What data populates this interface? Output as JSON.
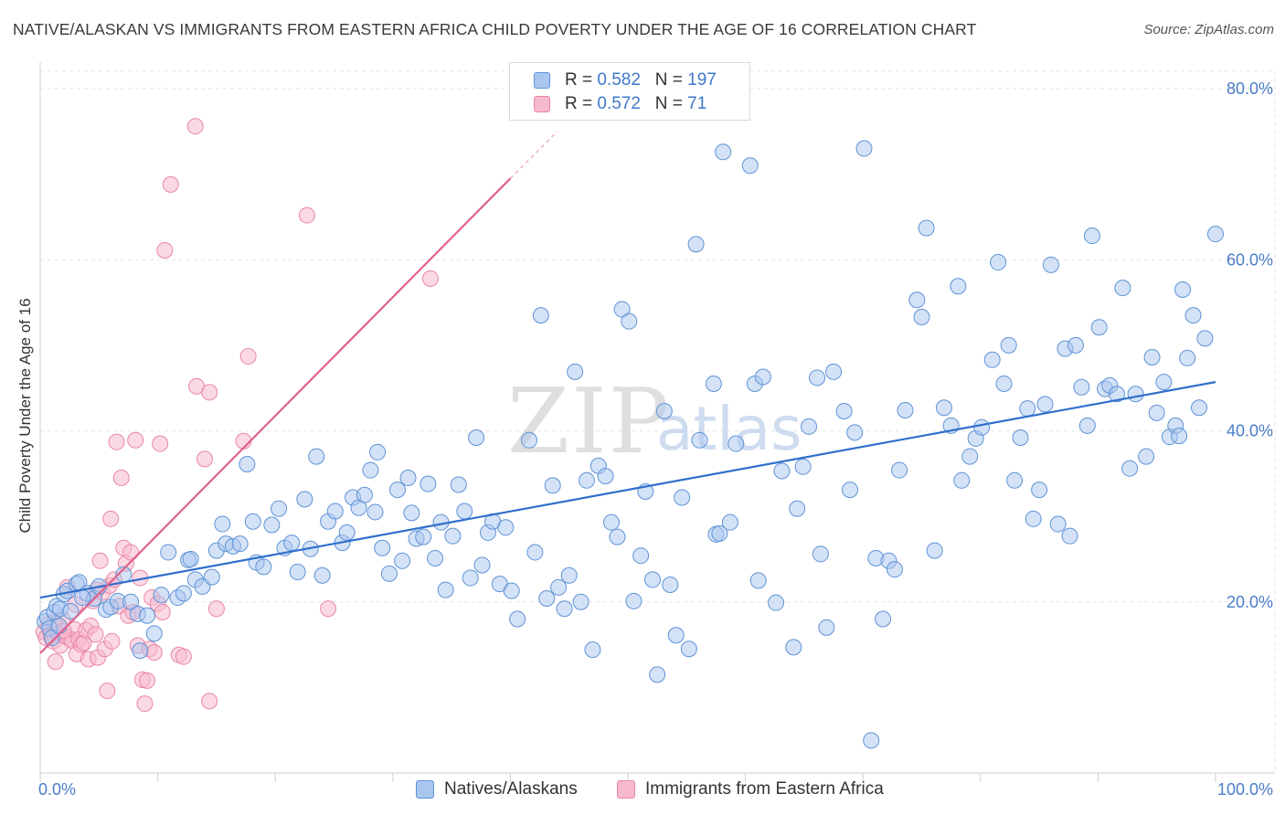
{
  "header": {
    "title": "NATIVE/ALASKAN VS IMMIGRANTS FROM EASTERN AFRICA CHILD POVERTY UNDER THE AGE OF 16 CORRELATION CHART",
    "source": "Source: ZipAtlas.com"
  },
  "watermark": {
    "zip": "ZIP",
    "atlas": "atlas"
  },
  "legend": {
    "rows": [
      {
        "r_label": "R = ",
        "r_value": "0.582",
        "n_label": "N = ",
        "n_value": "197"
      },
      {
        "r_label": "R = ",
        "r_value": "0.572",
        "n_label": "N = ",
        "n_value": "71"
      }
    ]
  },
  "colors": {
    "blue_fill": "#a9c6ef",
    "blue_stroke": "#5f93d6",
    "blue_line": "#2f6fcb",
    "pink_fill": "#f7b9cc",
    "pink_stroke": "#e886a6",
    "pink_line": "#e0628d",
    "grid": "#e6e6e6",
    "tick_text": "#4a7cc9"
  },
  "chart_data": {
    "type": "scatter",
    "title": "NATIVE/ALASKAN VS IMMIGRANTS FROM EASTERN AFRICA CHILD POVERTY UNDER THE AGE OF 16 CORRELATION CHART",
    "xlabel": "",
    "ylabel": "Child Poverty Under the Age of 16",
    "xlim": [
      0,
      100
    ],
    "ylim": [
      0,
      80
    ],
    "x_tick_labels": [
      "0.0%",
      "100.0%"
    ],
    "y_ticks": [
      20,
      40,
      60,
      80
    ],
    "y_tick_labels": [
      "20.0%",
      "40.0%",
      "60.0%",
      "80.0%"
    ],
    "grid": true,
    "legend_position": "top-center",
    "series": [
      {
        "name": "Natives/Alaskans",
        "color": "#a9c6ef",
        "trend": {
          "x": [
            0,
            100
          ],
          "y": [
            20.5,
            45.7
          ]
        },
        "points": [
          [
            0.4,
            17.7
          ],
          [
            0.6,
            18.2
          ],
          [
            0.8,
            16.9
          ],
          [
            1.0,
            15.8
          ],
          [
            1.2,
            18.8
          ],
          [
            1.4,
            19.5
          ],
          [
            1.7,
            19.2
          ],
          [
            2.0,
            20.9
          ],
          [
            2.3,
            21.3
          ],
          [
            3.1,
            22.1
          ],
          [
            3.3,
            22.3
          ],
          [
            4.0,
            21.0
          ],
          [
            4.6,
            20.4
          ],
          [
            5.0,
            21.8
          ],
          [
            5.6,
            19.1
          ],
          [
            6.0,
            19.4
          ],
          [
            6.6,
            20.1
          ],
          [
            7.1,
            23.2
          ],
          [
            7.7,
            20.0
          ],
          [
            8.3,
            18.6
          ],
          [
            8.5,
            14.3
          ],
          [
            9.1,
            18.4
          ],
          [
            9.7,
            16.3
          ],
          [
            10.3,
            20.8
          ],
          [
            10.9,
            25.8
          ],
          [
            11.7,
            20.5
          ],
          [
            12.2,
            21.0
          ],
          [
            12.6,
            24.9
          ],
          [
            12.8,
            25.0
          ],
          [
            13.2,
            22.6
          ],
          [
            13.8,
            21.8
          ],
          [
            14.6,
            22.9
          ],
          [
            15.0,
            26.0
          ],
          [
            15.5,
            29.1
          ],
          [
            15.8,
            26.8
          ],
          [
            16.4,
            26.5
          ],
          [
            17.0,
            26.8
          ],
          [
            17.6,
            36.1
          ],
          [
            18.1,
            29.4
          ],
          [
            18.4,
            24.6
          ],
          [
            19.0,
            24.1
          ],
          [
            19.7,
            29.0
          ],
          [
            20.3,
            30.9
          ],
          [
            20.8,
            26.3
          ],
          [
            21.4,
            26.9
          ],
          [
            21.9,
            23.5
          ],
          [
            22.5,
            32.0
          ],
          [
            23.0,
            26.2
          ],
          [
            23.5,
            37.0
          ],
          [
            24.0,
            23.1
          ],
          [
            24.5,
            29.4
          ],
          [
            25.1,
            30.6
          ],
          [
            25.7,
            26.9
          ],
          [
            26.1,
            28.1
          ],
          [
            26.6,
            32.2
          ],
          [
            27.1,
            31.0
          ],
          [
            27.6,
            32.5
          ],
          [
            28.1,
            35.4
          ],
          [
            28.5,
            30.5
          ],
          [
            28.7,
            37.5
          ],
          [
            29.1,
            26.3
          ],
          [
            29.7,
            23.3
          ],
          [
            30.4,
            33.1
          ],
          [
            30.8,
            24.8
          ],
          [
            31.3,
            34.5
          ],
          [
            31.6,
            30.4
          ],
          [
            32.0,
            27.4
          ],
          [
            32.6,
            27.6
          ],
          [
            33.0,
            33.8
          ],
          [
            33.6,
            25.1
          ],
          [
            34.1,
            29.3
          ],
          [
            34.5,
            21.4
          ],
          [
            35.1,
            27.7
          ],
          [
            35.6,
            33.7
          ],
          [
            36.1,
            30.6
          ],
          [
            36.6,
            22.8
          ],
          [
            37.1,
            39.2
          ],
          [
            37.6,
            24.3
          ],
          [
            38.1,
            28.1
          ],
          [
            38.5,
            29.4
          ],
          [
            39.1,
            22.1
          ],
          [
            39.6,
            28.7
          ],
          [
            40.1,
            21.3
          ],
          [
            40.6,
            18.0
          ],
          [
            41.6,
            38.9
          ],
          [
            42.1,
            25.8
          ],
          [
            42.6,
            53.5
          ],
          [
            43.1,
            20.4
          ],
          [
            43.6,
            33.6
          ],
          [
            44.1,
            21.7
          ],
          [
            44.6,
            19.2
          ],
          [
            45.0,
            23.1
          ],
          [
            45.5,
            46.9
          ],
          [
            46.0,
            20.0
          ],
          [
            46.5,
            34.2
          ],
          [
            47.0,
            14.4
          ],
          [
            47.5,
            35.9
          ],
          [
            48.1,
            34.7
          ],
          [
            48.6,
            29.3
          ],
          [
            49.1,
            27.6
          ],
          [
            49.5,
            54.2
          ],
          [
            50.1,
            52.8
          ],
          [
            50.5,
            20.1
          ],
          [
            51.1,
            25.4
          ],
          [
            51.5,
            32.9
          ],
          [
            52.1,
            22.6
          ],
          [
            52.5,
            11.5
          ],
          [
            53.1,
            42.3
          ],
          [
            53.6,
            22.0
          ],
          [
            54.1,
            16.1
          ],
          [
            54.6,
            32.2
          ],
          [
            55.2,
            14.5
          ],
          [
            55.8,
            61.8
          ],
          [
            56.1,
            38.9
          ],
          [
            57.3,
            45.5
          ],
          [
            57.5,
            27.9
          ],
          [
            57.8,
            28.0
          ],
          [
            58.1,
            72.6
          ],
          [
            58.7,
            29.3
          ],
          [
            59.2,
            38.5
          ],
          [
            60.4,
            71.0
          ],
          [
            60.8,
            45.5
          ],
          [
            61.1,
            22.5
          ],
          [
            61.5,
            46.3
          ],
          [
            62.6,
            19.9
          ],
          [
            63.1,
            35.3
          ],
          [
            64.1,
            14.7
          ],
          [
            64.4,
            30.9
          ],
          [
            64.9,
            35.8
          ],
          [
            65.4,
            40.5
          ],
          [
            66.1,
            46.2
          ],
          [
            66.4,
            25.6
          ],
          [
            66.9,
            17.0
          ],
          [
            67.5,
            46.9
          ],
          [
            68.4,
            42.3
          ],
          [
            68.9,
            33.1
          ],
          [
            69.3,
            39.8
          ],
          [
            70.1,
            73.0
          ],
          [
            70.7,
            3.8
          ],
          [
            71.1,
            25.1
          ],
          [
            71.7,
            18.0
          ],
          [
            72.2,
            24.8
          ],
          [
            72.7,
            23.8
          ],
          [
            73.1,
            35.4
          ],
          [
            73.6,
            42.4
          ],
          [
            74.6,
            55.3
          ],
          [
            75.0,
            53.3
          ],
          [
            75.4,
            63.7
          ],
          [
            76.1,
            26.0
          ],
          [
            76.9,
            42.7
          ],
          [
            77.5,
            40.6
          ],
          [
            78.1,
            56.9
          ],
          [
            78.4,
            34.2
          ],
          [
            79.1,
            37.0
          ],
          [
            79.6,
            39.1
          ],
          [
            80.1,
            40.4
          ],
          [
            81.0,
            48.3
          ],
          [
            81.5,
            59.7
          ],
          [
            82.0,
            45.5
          ],
          [
            82.4,
            50.0
          ],
          [
            82.9,
            34.2
          ],
          [
            83.4,
            39.2
          ],
          [
            84.0,
            42.6
          ],
          [
            84.5,
            29.7
          ],
          [
            85.0,
            33.1
          ],
          [
            85.5,
            43.1
          ],
          [
            86.0,
            59.4
          ],
          [
            86.6,
            29.1
          ],
          [
            87.2,
            49.6
          ],
          [
            87.6,
            27.7
          ],
          [
            88.1,
            50.0
          ],
          [
            88.6,
            45.1
          ],
          [
            89.1,
            40.6
          ],
          [
            89.5,
            62.8
          ],
          [
            90.1,
            52.1
          ],
          [
            90.6,
            44.9
          ],
          [
            91.0,
            45.3
          ],
          [
            91.6,
            44.3
          ],
          [
            92.1,
            56.7
          ],
          [
            92.7,
            35.6
          ],
          [
            93.2,
            44.3
          ],
          [
            94.1,
            37.0
          ],
          [
            94.6,
            48.6
          ],
          [
            95.0,
            42.1
          ],
          [
            95.6,
            45.7
          ],
          [
            96.1,
            39.3
          ],
          [
            96.6,
            40.6
          ],
          [
            96.9,
            39.4
          ],
          [
            97.2,
            56.5
          ],
          [
            97.6,
            48.5
          ],
          [
            98.1,
            53.5
          ],
          [
            98.6,
            42.7
          ],
          [
            99.1,
            50.8
          ],
          [
            100.0,
            63.0
          ],
          [
            1.6,
            17.2
          ],
          [
            2.6,
            18.9
          ],
          [
            3.6,
            20.5
          ]
        ]
      },
      {
        "name": "Immigrants from Eastern Africa",
        "color": "#f7b9cc",
        "trend": {
          "x": [
            0,
            40
          ],
          "y": [
            14.0,
            69.5
          ]
        },
        "trend_dashed_ext": {
          "x": [
            40,
            44
          ],
          "y": [
            69.5,
            75.0
          ]
        },
        "points": [
          [
            0.3,
            16.5
          ],
          [
            0.5,
            15.8
          ],
          [
            0.7,
            17.4
          ],
          [
            0.9,
            16.2
          ],
          [
            1.1,
            15.4
          ],
          [
            1.3,
            13.0
          ],
          [
            1.5,
            16.3
          ],
          [
            1.7,
            14.9
          ],
          [
            1.9,
            17.9
          ],
          [
            2.1,
            16.0
          ],
          [
            2.3,
            21.7
          ],
          [
            2.5,
            15.7
          ],
          [
            2.7,
            15.5
          ],
          [
            2.9,
            16.8
          ],
          [
            3.1,
            13.9
          ],
          [
            3.3,
            15.6
          ],
          [
            3.5,
            15.0
          ],
          [
            3.7,
            15.2
          ],
          [
            3.9,
            16.7
          ],
          [
            4.1,
            13.3
          ],
          [
            4.3,
            17.2
          ],
          [
            4.5,
            20.1
          ],
          [
            4.7,
            16.2
          ],
          [
            4.9,
            13.5
          ],
          [
            5.1,
            24.8
          ],
          [
            5.3,
            21.1
          ],
          [
            5.5,
            14.5
          ],
          [
            5.7,
            9.6
          ],
          [
            5.9,
            21.9
          ],
          [
            6.1,
            15.4
          ],
          [
            6.3,
            22.6
          ],
          [
            6.5,
            38.7
          ],
          [
            6.7,
            19.5
          ],
          [
            6.9,
            34.5
          ],
          [
            7.1,
            26.3
          ],
          [
            7.3,
            24.5
          ],
          [
            7.5,
            18.4
          ],
          [
            7.7,
            25.8
          ],
          [
            7.9,
            18.8
          ],
          [
            8.1,
            38.9
          ],
          [
            8.3,
            14.9
          ],
          [
            8.5,
            22.8
          ],
          [
            8.7,
            10.9
          ],
          [
            8.9,
            8.1
          ],
          [
            9.1,
            10.8
          ],
          [
            9.3,
            14.5
          ],
          [
            9.5,
            20.5
          ],
          [
            9.7,
            14.1
          ],
          [
            10.0,
            19.8
          ],
          [
            10.2,
            38.5
          ],
          [
            10.4,
            18.8
          ],
          [
            10.6,
            61.1
          ],
          [
            11.1,
            68.8
          ],
          [
            11.8,
            13.8
          ],
          [
            12.2,
            13.6
          ],
          [
            13.2,
            75.6
          ],
          [
            13.3,
            45.2
          ],
          [
            14.0,
            36.7
          ],
          [
            14.4,
            44.5
          ],
          [
            14.4,
            8.4
          ],
          [
            15.0,
            19.2
          ],
          [
            17.3,
            38.8
          ],
          [
            17.7,
            48.7
          ],
          [
            22.7,
            65.2
          ],
          [
            24.5,
            19.2
          ],
          [
            33.2,
            57.8
          ],
          [
            1.2,
            17.6
          ],
          [
            2.0,
            16.6
          ],
          [
            3.0,
            19.7
          ],
          [
            4.8,
            21.4
          ],
          [
            6.0,
            29.7
          ]
        ]
      }
    ]
  },
  "bottom_legend": {
    "items": [
      {
        "label": "Natives/Alaskans"
      },
      {
        "label": "Immigrants from Eastern Africa"
      }
    ]
  }
}
